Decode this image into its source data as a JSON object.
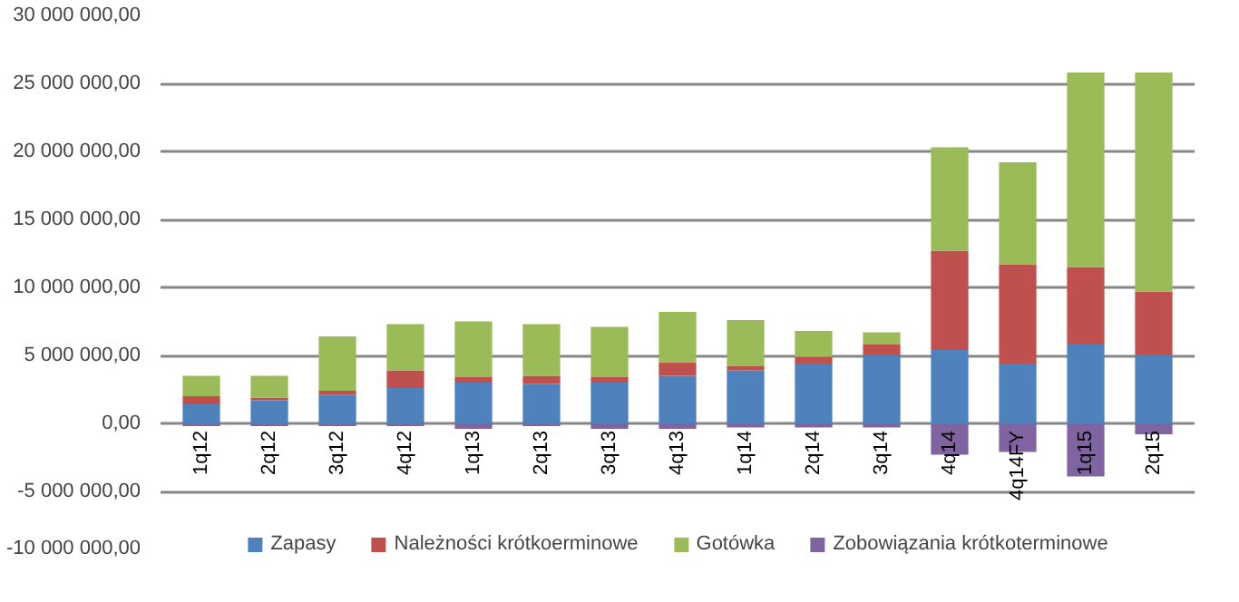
{
  "chart_data": {
    "type": "bar",
    "stacked": true,
    "categories": [
      "1q12",
      "2q12",
      "3q12",
      "4q12",
      "1q13",
      "2q13",
      "3q13",
      "4q13",
      "1q14",
      "2q14",
      "3q14",
      "4q14",
      "4q14FY",
      "1q15",
      "2q15"
    ],
    "series": [
      {
        "name": "Zapasy",
        "color": "#4f81bd",
        "values": [
          1400000,
          1700000,
          2100000,
          2600000,
          3000000,
          2900000,
          3000000,
          3500000,
          3900000,
          4400000,
          5000000,
          5400000,
          4400000,
          5800000,
          5000000
        ]
      },
      {
        "name": "Należności krótkoerminowe",
        "color": "#c0504d",
        "values": [
          600000,
          200000,
          300000,
          1300000,
          400000,
          600000,
          400000,
          1000000,
          300000,
          500000,
          800000,
          7300000,
          7300000,
          5700000,
          4700000
        ]
      },
      {
        "name": "Gotówka",
        "color": "#9bbb59",
        "values": [
          1500000,
          1600000,
          4000000,
          3400000,
          4100000,
          3800000,
          3700000,
          3700000,
          3400000,
          1900000,
          900000,
          7600000,
          7500000,
          14300000,
          16100000
        ]
      },
      {
        "name": "Zobowiązania krótkoterminowe",
        "color": "#8064a2",
        "values": [
          -200000,
          -200000,
          -200000,
          -200000,
          -400000,
          -200000,
          -400000,
          -400000,
          -300000,
          -300000,
          -300000,
          -2300000,
          -2100000,
          -3900000,
          -800000
        ]
      }
    ],
    "ylim": [
      -10000000,
      30000000
    ],
    "yticks": [
      {
        "value": -10000000,
        "label": "-10 000 000,00"
      },
      {
        "value": -5000000,
        "label": "-5 000 000,00"
      },
      {
        "value": 0,
        "label": "0,00"
      },
      {
        "value": 5000000,
        "label": "5 000 000,00"
      },
      {
        "value": 10000000,
        "label": "10 000 000,00"
      },
      {
        "value": 15000000,
        "label": "15 000 000,00"
      },
      {
        "value": 20000000,
        "label": "20 000 000,00"
      },
      {
        "value": 25000000,
        "label": "25 000 000,00"
      },
      {
        "value": 30000000,
        "label": "30 000 000,00"
      }
    ],
    "grid": "y",
    "legend": "bottom"
  }
}
